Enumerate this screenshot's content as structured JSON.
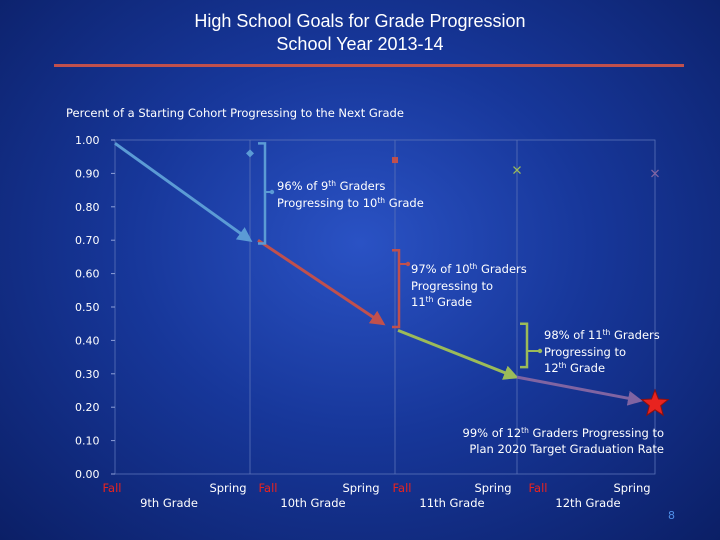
{
  "header": {
    "title_line1": "High School Goals for Grade Progression",
    "title_line2": "School Year 2013-14",
    "rule_color": "#c0504d"
  },
  "slide": {
    "page_number": "8"
  },
  "chart_data": {
    "type": "line",
    "title": "Percent of a Starting Cohort Progressing to the Next Grade",
    "ylim": [
      0,
      1
    ],
    "y_ticks": [
      "0.00",
      "0.10",
      "0.20",
      "0.30",
      "0.40",
      "0.50",
      "0.60",
      "0.70",
      "0.80",
      "0.90",
      "1.00"
    ],
    "x_slots": [
      "Fall",
      "Spring",
      "Fall",
      "Spring",
      "Fall",
      "Spring",
      "Fall",
      "Spring"
    ],
    "grades": [
      "9th Grade",
      "10th Grade",
      "11th Grade",
      "12th Grade"
    ],
    "series": [
      {
        "color": "#5b9bd5",
        "marker": "diamond",
        "x": [
          "Fall",
          "Spring"
        ],
        "y": [
          0.99,
          0.7
        ]
      },
      {
        "color": "#c0504d",
        "marker": "square",
        "x": [
          "Spring",
          "Fall"
        ],
        "y": [
          0.7,
          0.45
        ]
      },
      {
        "color": "#9bbb59",
        "marker": "x",
        "x": [
          "Fall",
          "Spring"
        ],
        "y": [
          0.43,
          0.29
        ]
      },
      {
        "color": "#8064a2",
        "marker": "x",
        "x": [
          "Spring",
          "Fall"
        ],
        "y": [
          0.29,
          0.22
        ]
      }
    ],
    "reference_points": [
      {
        "x_index": 2,
        "y": 0.96,
        "marker": "diamond",
        "color": "#5b9bd5"
      },
      {
        "x_index": 4,
        "y": 0.94,
        "marker": "square",
        "color": "#c0504d"
      },
      {
        "x_index": 6,
        "y": 0.91,
        "marker": "x",
        "color": "#9bbb59"
      },
      {
        "x_index": 7,
        "y": 0.9,
        "marker": "x",
        "color": "#8064a2"
      }
    ],
    "goal_marker": {
      "shape": "star",
      "color": "#e8231f",
      "y": 0.21
    },
    "annotations": [
      {
        "line1": "96% of 9",
        "sup1": "th",
        "line1b": " Graders",
        "line2": "Progressing to 10",
        "sup2": "th",
        "line2b": " Grade",
        "color": "#5b9bd5"
      },
      {
        "line1": "97% of 10",
        "sup1": "th",
        "line1b": " Graders",
        "line2": "Progressing to",
        "line3": "11",
        "sup3": "th",
        "line3b": " Grade",
        "color": "#c0504d"
      },
      {
        "line1": "98% of 11",
        "sup1": "th",
        "line1b": " Graders",
        "line2": "Progressing to",
        "line3": "12",
        "sup3": "th",
        "line3b": " Grade",
        "color": "#9bbb59"
      },
      {
        "line1": "99% of 12",
        "sup1": "th",
        "line1b": " Graders Progressing to",
        "line2": "Plan 2020 Target Graduation Rate"
      }
    ]
  }
}
